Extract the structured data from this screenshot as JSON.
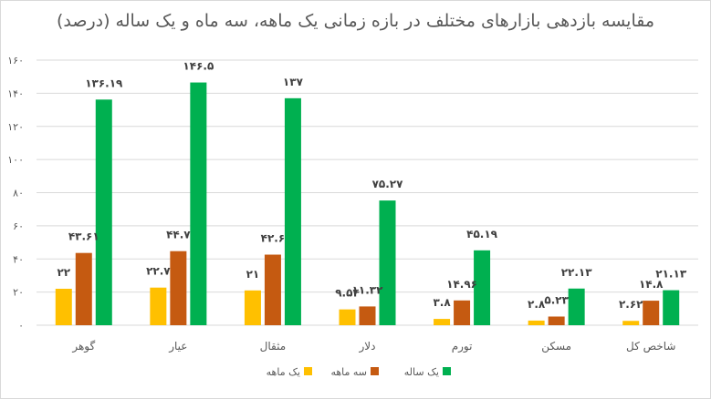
{
  "chart_data": {
    "type": "bar",
    "title": "مقایسه بازدهی بازارهای مختلف در بازه زمانی یک ماهه، سه ماه و یک ساله (درصد)",
    "xlabel": "",
    "ylabel": "",
    "ylim": [
      0,
      160
    ],
    "yticks": [
      0,
      20,
      40,
      60,
      80,
      100,
      120,
      140,
      160
    ],
    "ytick_labels": [
      "۰",
      "۲۰",
      "۴۰",
      "۶۰",
      "۸۰",
      "۱۰۰",
      "۱۲۰",
      "۱۴۰",
      "۱۶۰"
    ],
    "grid": true,
    "legend": "bottom",
    "categories": [
      "گوهر",
      "عیار",
      "مثقال",
      "دلار",
      "تورم",
      "مسکن",
      "شاخص کل"
    ],
    "series": [
      {
        "name": "یک ماهه",
        "color": "#FFC000",
        "values": [
          22,
          22.7,
          21,
          9.54,
          3.8,
          2.8,
          2.62
        ],
        "labels": [
          "۲۲",
          "۲۲.۷",
          "۲۱",
          "۹.۵۴",
          "۳.۸",
          "۲.۸",
          "۲.۶۲"
        ]
      },
      {
        "name": "سه ماهه",
        "color": "#C55A11",
        "values": [
          43.61,
          44.7,
          42.6,
          11.32,
          14.96,
          5.23,
          14.8
        ],
        "labels": [
          "۴۳.۶۱",
          "۴۴.۷",
          "۴۲.۶",
          "۱۱.۳۲",
          "۱۴.۹۶",
          "۵.۲۳",
          "۱۴.۸"
        ]
      },
      {
        "name": "یک ساله",
        "color": "#00B050",
        "values": [
          136.19,
          146.5,
          137,
          75.27,
          45.19,
          22.13,
          21.13
        ],
        "labels": [
          "۱۳۶.۱۹",
          "۱۴۶.۵",
          "۱۳۷",
          "۷۵.۲۷",
          "۴۵.۱۹",
          "۲۲.۱۳",
          "۲۱.۱۳"
        ]
      }
    ]
  }
}
